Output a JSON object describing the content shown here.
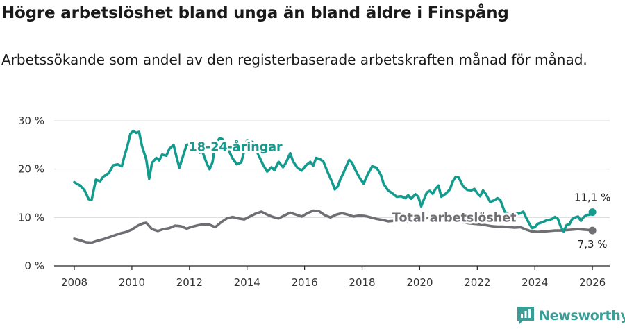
{
  "header": {
    "title": "Högre arbetslöshet bland unga än bland äldre i Finspång",
    "subtitle": "Arbetssökande som andel av den registerbaserade arbetskraften månad för månad."
  },
  "brand": {
    "name": "Newsworthy"
  },
  "colors": {
    "youth": "#139b8e",
    "total": "#6f6e72",
    "grid": "#d9d9d9",
    "axis": "#222222",
    "text": "#333333"
  },
  "chart_data": {
    "type": "line",
    "title": "Högre arbetslöshet bland unga än bland äldre i Finspång",
    "subtitle": "Arbetssökande som andel av den registerbaserade arbetskraften månad för månad.",
    "xlabel": "",
    "ylabel": "",
    "xlim": [
      2007.3,
      2026.6
    ],
    "ylim": [
      0,
      30
    ],
    "x_ticks": [
      2008,
      2010,
      2012,
      2014,
      2016,
      2018,
      2020,
      2022,
      2024,
      2026
    ],
    "x_tick_labels": [
      "2008",
      "2010",
      "2012",
      "2014",
      "2016",
      "2018",
      "2020",
      "2022",
      "2024",
      "2026"
    ],
    "y_ticks": [
      0,
      10,
      20,
      30
    ],
    "y_tick_labels": [
      "0 %",
      "10 %",
      "20 %",
      "30 %"
    ],
    "grid": true,
    "legend": "inline",
    "series": [
      {
        "name": "18-24-åringar",
        "label_at": [
          2013.6,
          24.6
        ],
        "end_label": "11,1 %",
        "points": [
          [
            2008.0,
            17.3
          ],
          [
            2008.2,
            16.6
          ],
          [
            2008.35,
            15.7
          ],
          [
            2008.5,
            13.8
          ],
          [
            2008.6,
            13.6
          ],
          [
            2008.75,
            17.8
          ],
          [
            2008.9,
            17.5
          ],
          [
            2009.0,
            18.4
          ],
          [
            2009.2,
            19.2
          ],
          [
            2009.35,
            20.8
          ],
          [
            2009.5,
            21.0
          ],
          [
            2009.65,
            20.6
          ],
          [
            2009.75,
            22.9
          ],
          [
            2009.85,
            24.9
          ],
          [
            2009.95,
            27.3
          ],
          [
            2010.05,
            27.9
          ],
          [
            2010.15,
            27.5
          ],
          [
            2010.25,
            27.7
          ],
          [
            2010.35,
            24.8
          ],
          [
            2010.5,
            22.0
          ],
          [
            2010.6,
            18.0
          ],
          [
            2010.7,
            21.3
          ],
          [
            2010.85,
            22.3
          ],
          [
            2010.95,
            21.8
          ],
          [
            2011.05,
            23.0
          ],
          [
            2011.2,
            22.8
          ],
          [
            2011.3,
            24.2
          ],
          [
            2011.45,
            25.0
          ],
          [
            2011.55,
            22.5
          ],
          [
            2011.65,
            20.3
          ],
          [
            2011.75,
            22.2
          ],
          [
            2011.9,
            25.0
          ],
          [
            2012.05,
            25.4
          ],
          [
            2012.15,
            24.2
          ],
          [
            2012.25,
            25.2
          ],
          [
            2012.35,
            23.4
          ],
          [
            2012.45,
            23.6
          ],
          [
            2012.6,
            21.2
          ],
          [
            2012.7,
            20.0
          ],
          [
            2012.8,
            21.4
          ],
          [
            2012.9,
            25.2
          ],
          [
            2013.05,
            26.4
          ],
          [
            2013.15,
            26.2
          ],
          [
            2013.3,
            24.6
          ],
          [
            2013.5,
            22.2
          ],
          [
            2013.65,
            21.0
          ],
          [
            2013.8,
            21.4
          ],
          [
            2014.0,
            26.0
          ],
          [
            2014.2,
            25.6
          ],
          [
            2014.4,
            22.9
          ],
          [
            2014.55,
            21.0
          ],
          [
            2014.7,
            19.5
          ],
          [
            2014.85,
            20.4
          ],
          [
            2014.95,
            19.8
          ],
          [
            2015.1,
            21.5
          ],
          [
            2015.25,
            20.4
          ],
          [
            2015.35,
            21.3
          ],
          [
            2015.5,
            23.3
          ],
          [
            2015.6,
            21.6
          ],
          [
            2015.75,
            20.3
          ],
          [
            2015.9,
            19.7
          ],
          [
            2016.05,
            20.8
          ],
          [
            2016.2,
            21.5
          ],
          [
            2016.3,
            20.7
          ],
          [
            2016.4,
            22.3
          ],
          [
            2016.55,
            22.0
          ],
          [
            2016.65,
            21.6
          ],
          [
            2016.8,
            19.4
          ],
          [
            2016.95,
            17.4
          ],
          [
            2017.05,
            15.8
          ],
          [
            2017.15,
            16.4
          ],
          [
            2017.25,
            18.0
          ],
          [
            2017.35,
            19.2
          ],
          [
            2017.45,
            20.6
          ],
          [
            2017.55,
            21.9
          ],
          [
            2017.65,
            21.3
          ],
          [
            2017.75,
            20.0
          ],
          [
            2017.9,
            18.3
          ],
          [
            2018.05,
            17.0
          ],
          [
            2018.2,
            19.0
          ],
          [
            2018.35,
            20.6
          ],
          [
            2018.5,
            20.3
          ],
          [
            2018.65,
            18.8
          ],
          [
            2018.75,
            16.9
          ],
          [
            2018.9,
            15.6
          ],
          [
            2019.05,
            15.0
          ],
          [
            2019.2,
            14.3
          ],
          [
            2019.35,
            14.4
          ],
          [
            2019.5,
            14.0
          ],
          [
            2019.6,
            14.6
          ],
          [
            2019.7,
            13.9
          ],
          [
            2019.85,
            14.8
          ],
          [
            2019.95,
            14.3
          ],
          [
            2020.05,
            12.3
          ],
          [
            2020.15,
            13.8
          ],
          [
            2020.25,
            15.2
          ],
          [
            2020.35,
            15.5
          ],
          [
            2020.45,
            14.9
          ],
          [
            2020.55,
            15.9
          ],
          [
            2020.65,
            16.6
          ],
          [
            2020.75,
            14.3
          ],
          [
            2020.9,
            14.9
          ],
          [
            2021.05,
            15.8
          ],
          [
            2021.15,
            17.5
          ],
          [
            2021.25,
            18.4
          ],
          [
            2021.35,
            18.3
          ],
          [
            2021.5,
            16.5
          ],
          [
            2021.65,
            15.7
          ],
          [
            2021.8,
            15.6
          ],
          [
            2021.9,
            15.9
          ],
          [
            2022.0,
            15.0
          ],
          [
            2022.1,
            14.4
          ],
          [
            2022.2,
            15.6
          ],
          [
            2022.3,
            14.8
          ],
          [
            2022.45,
            13.2
          ],
          [
            2022.6,
            13.6
          ],
          [
            2022.7,
            14.0
          ],
          [
            2022.8,
            13.6
          ],
          [
            2022.95,
            11.2
          ],
          [
            2023.05,
            10.8
          ],
          [
            2023.15,
            10.4
          ],
          [
            2023.25,
            9.8
          ],
          [
            2023.35,
            10.8
          ],
          [
            2023.45,
            10.8
          ],
          [
            2023.6,
            11.2
          ],
          [
            2023.7,
            9.9
          ],
          [
            2023.8,
            8.8
          ],
          [
            2023.9,
            7.8
          ],
          [
            2024.0,
            8.0
          ],
          [
            2024.1,
            8.7
          ],
          [
            2024.2,
            8.9
          ],
          [
            2024.3,
            9.1
          ],
          [
            2024.4,
            9.4
          ],
          [
            2024.5,
            9.5
          ],
          [
            2024.6,
            9.7
          ],
          [
            2024.7,
            10.1
          ],
          [
            2024.8,
            9.7
          ],
          [
            2024.9,
            8.1
          ],
          [
            2025.0,
            7.1
          ],
          [
            2025.1,
            8.4
          ],
          [
            2025.2,
            8.6
          ],
          [
            2025.3,
            9.7
          ],
          [
            2025.4,
            10.0
          ],
          [
            2025.5,
            10.2
          ],
          [
            2025.6,
            9.3
          ],
          [
            2025.7,
            10.1
          ],
          [
            2025.8,
            10.5
          ],
          [
            2025.9,
            10.6
          ],
          [
            2026.0,
            11.1
          ]
        ]
      },
      {
        "name": "Total arbetslöshet",
        "label_at": [
          2021.2,
          10.0
        ],
        "end_label": "7,3 %",
        "points": [
          [
            2008.0,
            5.6
          ],
          [
            2008.2,
            5.3
          ],
          [
            2008.4,
            4.9
          ],
          [
            2008.6,
            4.8
          ],
          [
            2008.8,
            5.2
          ],
          [
            2009.0,
            5.5
          ],
          [
            2009.2,
            5.9
          ],
          [
            2009.4,
            6.3
          ],
          [
            2009.6,
            6.7
          ],
          [
            2009.8,
            7.0
          ],
          [
            2010.0,
            7.5
          ],
          [
            2010.2,
            8.3
          ],
          [
            2010.4,
            8.8
          ],
          [
            2010.5,
            8.9
          ],
          [
            2010.7,
            7.6
          ],
          [
            2010.9,
            7.2
          ],
          [
            2011.1,
            7.6
          ],
          [
            2011.3,
            7.8
          ],
          [
            2011.5,
            8.3
          ],
          [
            2011.7,
            8.2
          ],
          [
            2011.9,
            7.7
          ],
          [
            2012.1,
            8.1
          ],
          [
            2012.3,
            8.4
          ],
          [
            2012.5,
            8.6
          ],
          [
            2012.7,
            8.5
          ],
          [
            2012.9,
            8.0
          ],
          [
            2013.1,
            9.0
          ],
          [
            2013.3,
            9.8
          ],
          [
            2013.5,
            10.1
          ],
          [
            2013.7,
            9.8
          ],
          [
            2013.9,
            9.6
          ],
          [
            2014.1,
            10.2
          ],
          [
            2014.3,
            10.8
          ],
          [
            2014.5,
            11.2
          ],
          [
            2014.7,
            10.6
          ],
          [
            2014.9,
            10.1
          ],
          [
            2015.1,
            9.8
          ],
          [
            2015.3,
            10.4
          ],
          [
            2015.5,
            11.0
          ],
          [
            2015.7,
            10.6
          ],
          [
            2015.9,
            10.2
          ],
          [
            2016.1,
            10.9
          ],
          [
            2016.3,
            11.4
          ],
          [
            2016.5,
            11.3
          ],
          [
            2016.7,
            10.5
          ],
          [
            2016.9,
            10.0
          ],
          [
            2017.1,
            10.6
          ],
          [
            2017.3,
            10.9
          ],
          [
            2017.5,
            10.6
          ],
          [
            2017.7,
            10.2
          ],
          [
            2017.9,
            10.4
          ],
          [
            2018.1,
            10.3
          ],
          [
            2018.3,
            10.0
          ],
          [
            2018.5,
            9.7
          ],
          [
            2018.7,
            9.5
          ],
          [
            2018.9,
            9.2
          ],
          [
            2019.1,
            9.3
          ],
          [
            2019.3,
            9.1
          ],
          [
            2019.5,
            9.2
          ],
          [
            2019.7,
            9.0
          ],
          [
            2019.9,
            9.4
          ],
          [
            2020.1,
            9.7
          ],
          [
            2020.3,
            9.9
          ],
          [
            2020.5,
            10.0
          ],
          [
            2020.7,
            9.8
          ],
          [
            2020.9,
            9.6
          ],
          [
            2021.1,
            9.4
          ],
          [
            2021.3,
            9.2
          ],
          [
            2021.5,
            9.0
          ],
          [
            2021.7,
            8.8
          ],
          [
            2021.9,
            8.7
          ],
          [
            2022.1,
            8.6
          ],
          [
            2022.3,
            8.4
          ],
          [
            2022.5,
            8.2
          ],
          [
            2022.7,
            8.1
          ],
          [
            2022.9,
            8.1
          ],
          [
            2023.1,
            8.0
          ],
          [
            2023.3,
            7.9
          ],
          [
            2023.5,
            8.0
          ],
          [
            2023.7,
            7.5
          ],
          [
            2023.9,
            7.1
          ],
          [
            2024.1,
            7.0
          ],
          [
            2024.3,
            7.1
          ],
          [
            2024.5,
            7.2
          ],
          [
            2024.7,
            7.3
          ],
          [
            2024.9,
            7.3
          ],
          [
            2025.1,
            7.4
          ],
          [
            2025.3,
            7.5
          ],
          [
            2025.5,
            7.6
          ],
          [
            2025.7,
            7.5
          ],
          [
            2025.9,
            7.4
          ],
          [
            2026.0,
            7.3
          ]
        ]
      }
    ]
  }
}
